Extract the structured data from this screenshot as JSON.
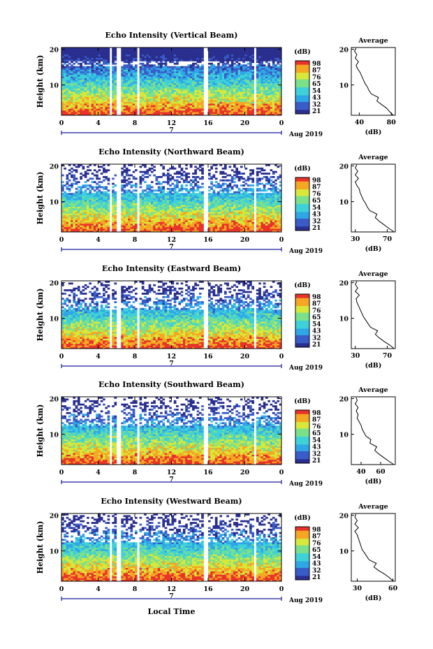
{
  "x_axis_label": "Local Time",
  "month_label": "Aug 2019",
  "date_label": "7",
  "colorbar_unit": "(dB)",
  "avg_title": "Average",
  "avg_xlabel": "(dB)",
  "colors": {
    "c21": "#2a2f8f",
    "c32": "#3a5cc8",
    "c43": "#2fa7e6",
    "c54": "#3fd1d8",
    "c65": "#7be08a",
    "c76": "#d8e83a",
    "c87": "#f5a623",
    "c98": "#e8332a"
  },
  "chart_data": [
    {
      "type": "heatmap",
      "title": "Echo Intensity (Vertical Beam)",
      "ylabel": "Height (km)",
      "xlim": [
        0,
        24
      ],
      "ylim": [
        1.5,
        20.5
      ],
      "x_ticks": [
        "0",
        "4",
        "8",
        "12",
        "16",
        "20",
        "0"
      ],
      "y_ticks": [
        "20",
        "10"
      ],
      "colorbar_ticks": [
        "98",
        "87",
        "76",
        "65",
        "54",
        "43",
        "32",
        "21"
      ],
      "data_gaps_hours": [
        [
          5.3,
          5.6
        ],
        [
          6.1,
          6.4
        ],
        [
          8.2,
          8.6
        ],
        [
          15.5,
          15.9
        ],
        [
          20.9,
          21.2
        ]
      ],
      "average": {
        "x_ticks": [
          "40",
          "80"
        ],
        "xlim": [
          30,
          85
        ],
        "profile": [
          [
            82,
            1.6
          ],
          [
            78,
            2.5
          ],
          [
            74,
            3.5
          ],
          [
            68,
            4.5
          ],
          [
            62,
            5.5
          ],
          [
            64,
            6.5
          ],
          [
            55,
            7.5
          ],
          [
            52,
            8.5
          ],
          [
            50,
            9.5
          ],
          [
            47,
            10.5
          ],
          [
            45,
            11.5
          ],
          [
            43,
            12.5
          ],
          [
            41,
            13.5
          ],
          [
            38,
            14.5
          ],
          [
            36,
            15.5
          ],
          [
            39,
            16.5
          ],
          [
            35,
            17.5
          ],
          [
            37,
            18.5
          ],
          [
            34,
            19.5
          ],
          [
            36,
            20.3
          ]
        ]
      }
    },
    {
      "type": "heatmap",
      "title": "Echo Intensity (Northward Beam)",
      "ylabel": "Height (km)",
      "xlim": [
        0,
        24
      ],
      "ylim": [
        1.5,
        20.5
      ],
      "x_ticks": [
        "0",
        "4",
        "8",
        "12",
        "16",
        "20",
        "0"
      ],
      "y_ticks": [
        "20",
        "10"
      ],
      "colorbar_ticks": [
        "98",
        "87",
        "76",
        "65",
        "54",
        "43",
        "32",
        "21"
      ],
      "data_gaps_hours": [
        [
          5.3,
          5.6
        ],
        [
          6.1,
          6.4
        ],
        [
          8.2,
          8.6
        ],
        [
          15.5,
          15.9
        ],
        [
          20.9,
          21.2
        ]
      ],
      "average": {
        "x_ticks": [
          "30",
          "70"
        ],
        "xlim": [
          25,
          80
        ],
        "profile": [
          [
            78,
            1.6
          ],
          [
            72,
            2.5
          ],
          [
            66,
            3.5
          ],
          [
            60,
            4.5
          ],
          [
            55,
            5.5
          ],
          [
            57,
            6.5
          ],
          [
            48,
            7.5
          ],
          [
            45,
            8.5
          ],
          [
            43,
            9.5
          ],
          [
            40,
            10.5
          ],
          [
            38,
            11.5
          ],
          [
            36,
            12.5
          ],
          [
            35,
            13.5
          ],
          [
            32,
            14.5
          ],
          [
            30,
            15.5
          ],
          [
            34,
            16.5
          ],
          [
            30,
            17.5
          ],
          [
            33,
            18.5
          ],
          [
            30,
            19.5
          ],
          [
            32,
            20.3
          ]
        ]
      }
    },
    {
      "type": "heatmap",
      "title": "Echo Intensity (Eastward Beam)",
      "ylabel": "Height (km)",
      "xlim": [
        0,
        24
      ],
      "ylim": [
        1.5,
        20.5
      ],
      "x_ticks": [
        "0",
        "4",
        "8",
        "12",
        "16",
        "20",
        "0"
      ],
      "y_ticks": [
        "20",
        "10"
      ],
      "colorbar_ticks": [
        "98",
        "87",
        "76",
        "65",
        "54",
        "43",
        "32",
        "21"
      ],
      "data_gaps_hours": [
        [
          5.3,
          5.6
        ],
        [
          6.1,
          6.4
        ],
        [
          8.2,
          8.6
        ],
        [
          15.5,
          15.9
        ],
        [
          20.9,
          21.2
        ]
      ],
      "average": {
        "x_ticks": [
          "30",
          "70"
        ],
        "xlim": [
          25,
          80
        ],
        "profile": [
          [
            78,
            1.6
          ],
          [
            73,
            2.5
          ],
          [
            66,
            3.5
          ],
          [
            60,
            4.5
          ],
          [
            55,
            5.5
          ],
          [
            58,
            6.5
          ],
          [
            49,
            7.5
          ],
          [
            46,
            8.5
          ],
          [
            43,
            9.5
          ],
          [
            40,
            10.5
          ],
          [
            38,
            11.5
          ],
          [
            36,
            12.5
          ],
          [
            34,
            13.5
          ],
          [
            32,
            14.5
          ],
          [
            31,
            15.5
          ],
          [
            35,
            16.5
          ],
          [
            30,
            17.5
          ],
          [
            33,
            18.5
          ],
          [
            30,
            19.5
          ],
          [
            32,
            20.3
          ]
        ]
      }
    },
    {
      "type": "heatmap",
      "title": "Echo Intensity (Southward Beam)",
      "ylabel": "Height (km)",
      "xlim": [
        0,
        24
      ],
      "ylim": [
        1.5,
        20.5
      ],
      "x_ticks": [
        "0",
        "4",
        "8",
        "12",
        "16",
        "20",
        "0"
      ],
      "y_ticks": [
        "20",
        "10"
      ],
      "colorbar_ticks": [
        "98",
        "87",
        "76",
        "65",
        "54",
        "43",
        "32",
        "21"
      ],
      "data_gaps_hours": [
        [
          5.3,
          5.6
        ],
        [
          6.1,
          6.4
        ],
        [
          8.2,
          8.6
        ],
        [
          15.5,
          15.9
        ],
        [
          20.9,
          21.2
        ]
      ],
      "average": {
        "x_ticks": [
          "40",
          "60"
        ],
        "xlim": [
          30,
          75
        ],
        "profile": [
          [
            73,
            1.6
          ],
          [
            68,
            2.5
          ],
          [
            63,
            3.5
          ],
          [
            58,
            4.5
          ],
          [
            54,
            5.5
          ],
          [
            56,
            6.5
          ],
          [
            49,
            7.5
          ],
          [
            50,
            8.5
          ],
          [
            45,
            9.5
          ],
          [
            43,
            10.5
          ],
          [
            41,
            11.5
          ],
          [
            40,
            12.5
          ],
          [
            38,
            13.5
          ],
          [
            36,
            14.5
          ],
          [
            37,
            15.5
          ],
          [
            35,
            16.5
          ],
          [
            37,
            17.5
          ],
          [
            34,
            18.5
          ],
          [
            36,
            19.5
          ],
          [
            35,
            20.3
          ]
        ]
      }
    },
    {
      "type": "heatmap",
      "title": "Echo Intensity (Westward Beam)",
      "ylabel": "Height (km)",
      "xlim": [
        0,
        24
      ],
      "ylim": [
        1.5,
        20.5
      ],
      "x_ticks": [
        "0",
        "4",
        "8",
        "12",
        "16",
        "20",
        "0"
      ],
      "y_ticks": [
        "20",
        "10"
      ],
      "colorbar_ticks": [
        "98",
        "87",
        "76",
        "65",
        "54",
        "43",
        "32",
        "21"
      ],
      "data_gaps_hours": [
        [
          5.3,
          5.6
        ],
        [
          6.1,
          6.4
        ],
        [
          8.2,
          8.6
        ],
        [
          15.5,
          15.9
        ],
        [
          20.9,
          21.2
        ]
      ],
      "average": {
        "x_ticks": [
          "30",
          "60"
        ],
        "xlim": [
          25,
          62
        ],
        "profile": [
          [
            60,
            1.6
          ],
          [
            57,
            2.5
          ],
          [
            53,
            3.5
          ],
          [
            48,
            4.5
          ],
          [
            44,
            5.5
          ],
          [
            46,
            6.5
          ],
          [
            40,
            7.5
          ],
          [
            38,
            8.5
          ],
          [
            36,
            9.5
          ],
          [
            34,
            10.5
          ],
          [
            33,
            11.5
          ],
          [
            32,
            12.5
          ],
          [
            31,
            13.5
          ],
          [
            30,
            14.5
          ],
          [
            28,
            15.5
          ],
          [
            31,
            16.5
          ],
          [
            28,
            17.5
          ],
          [
            30,
            18.5
          ],
          [
            28,
            19.5
          ],
          [
            29,
            20.3
          ]
        ]
      }
    }
  ]
}
